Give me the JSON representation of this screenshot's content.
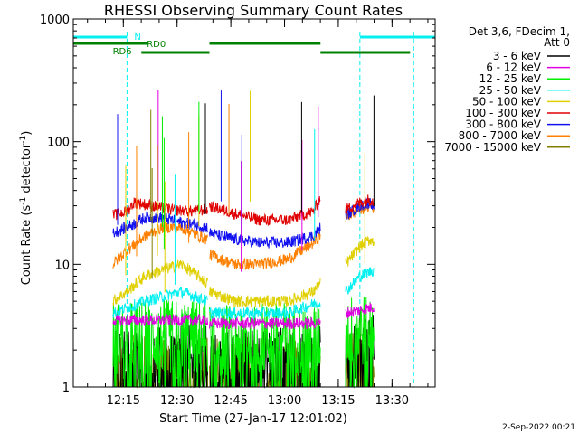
{
  "chart_data": {
    "type": "line",
    "title": "RHESSI Observing Summary Count Rates",
    "xlabel": "Start Time (27-Jan-17 12:01:02)",
    "ylabel": "Count Rate (s⁻¹ detector⁻¹)",
    "ylabel_parts": {
      "main": "Count Rate (s",
      "sup1": "-1",
      "mid": " detector",
      "sup2": "-1",
      "end": ")"
    },
    "yscale": "log",
    "ylim": [
      1,
      1000
    ],
    "xlim_minutes": [
      0,
      101
    ],
    "x_ticks": [
      "12:15",
      "12:30",
      "12:45",
      "13:00",
      "13:15",
      "13:30"
    ],
    "y_ticks": [
      "1",
      "10",
      "100",
      "1000"
    ],
    "footer_date": "2-Sep-2022 00:21",
    "legend_header": [
      "Det 3,6, FDecim 1,",
      "Att 0"
    ],
    "legend": [
      {
        "label": "3 - 6 keV",
        "color": "#000000"
      },
      {
        "label": "6 - 12 keV",
        "color": "#e000e0"
      },
      {
        "label": "12 - 25 keV",
        "color": "#00ee00"
      },
      {
        "label": "25 - 50 keV",
        "color": "#00f0f0"
      },
      {
        "label": "50 - 100 keV",
        "color": "#e0d000"
      },
      {
        "label": "100 - 300 keV",
        "color": "#e00000"
      },
      {
        "label": "300 - 800 keV",
        "color": "#1010f0"
      },
      {
        "label": "800 - 7000 keV",
        "color": "#ff8000"
      },
      {
        "label": "7000 - 15000 keV",
        "color": "#808000"
      }
    ],
    "flags": [
      {
        "label": "N",
        "color": "#00f0f0",
        "segments": [
          [
            0,
            15
          ],
          [
            80,
            101
          ]
        ]
      },
      {
        "label": "RD0",
        "color": "#008000",
        "segments": [
          [
            0,
            21
          ],
          [
            38,
            69
          ]
        ]
      },
      {
        "label": "RD6",
        "color": "#008000",
        "segments": [
          [
            19,
            38
          ],
          [
            69,
            94
          ]
        ]
      }
    ],
    "vlines_minutes": [
      15,
      80,
      95
    ],
    "segments_minutes": [
      [
        10.5,
        37.5
      ],
      [
        38,
        69
      ],
      [
        76,
        84
      ]
    ],
    "series": [
      {
        "color": "#e00000",
        "values": [
          [
            11,
            25
          ],
          [
            15,
            27
          ],
          [
            17,
            32
          ],
          [
            22,
            30
          ],
          [
            27,
            28
          ],
          [
            33,
            27
          ],
          [
            37.5,
            28
          ],
          [
            38,
            30
          ],
          [
            45,
            26
          ],
          [
            52,
            23
          ],
          [
            60,
            23
          ],
          [
            67,
            27
          ],
          [
            69,
            35
          ],
          [
            76,
            28
          ],
          [
            80,
            32
          ],
          [
            83,
            34
          ],
          [
            84,
            32
          ]
        ]
      },
      {
        "color": "#1010f0",
        "values": [
          [
            11,
            18
          ],
          [
            15,
            20
          ],
          [
            20,
            24
          ],
          [
            25,
            24
          ],
          [
            30,
            22
          ],
          [
            37.5,
            20
          ],
          [
            38,
            18
          ],
          [
            45,
            16
          ],
          [
            52,
            15
          ],
          [
            60,
            15
          ],
          [
            67,
            17
          ],
          [
            69,
            20
          ],
          [
            76,
            25
          ],
          [
            80,
            30
          ],
          [
            83,
            32
          ],
          [
            84,
            30
          ]
        ]
      },
      {
        "color": "#ff8000",
        "values": [
          [
            11,
            10
          ],
          [
            15,
            13
          ],
          [
            20,
            17
          ],
          [
            25,
            20
          ],
          [
            30,
            20
          ],
          [
            35,
            17
          ],
          [
            37.5,
            16
          ],
          [
            38,
            12
          ],
          [
            45,
            10
          ],
          [
            52,
            10
          ],
          [
            60,
            11
          ],
          [
            67,
            15
          ],
          [
            69,
            17
          ],
          [
            76,
            24
          ],
          [
            80,
            28
          ],
          [
            83,
            30
          ],
          [
            84,
            29
          ]
        ]
      },
      {
        "color": "#e0d000",
        "values": [
          [
            11,
            5
          ],
          [
            15,
            6
          ],
          [
            20,
            8
          ],
          [
            25,
            9
          ],
          [
            30,
            10
          ],
          [
            35,
            8
          ],
          [
            37.5,
            7
          ],
          [
            38,
            6
          ],
          [
            45,
            5
          ],
          [
            52,
            5
          ],
          [
            60,
            5
          ],
          [
            67,
            6
          ],
          [
            69,
            7
          ],
          [
            76,
            10
          ],
          [
            80,
            14
          ],
          [
            83,
            16
          ],
          [
            84,
            15
          ]
        ]
      },
      {
        "color": "#00f0f0",
        "values": [
          [
            11,
            4
          ],
          [
            20,
            5
          ],
          [
            30,
            6
          ],
          [
            37.5,
            5
          ],
          [
            38,
            4
          ],
          [
            60,
            4
          ],
          [
            69,
            5
          ],
          [
            76,
            6
          ],
          [
            80,
            8
          ],
          [
            84,
            9
          ]
        ]
      },
      {
        "color": "#e000e0",
        "values": [
          [
            11,
            3.5
          ],
          [
            37.5,
            3.5
          ],
          [
            38,
            3.3
          ],
          [
            69,
            3.3
          ],
          [
            76,
            4
          ],
          [
            84,
            4.5
          ]
        ]
      },
      {
        "color": "#00ee00",
        "values": [
          [
            11,
            2.5
          ],
          [
            37.5,
            2.6
          ],
          [
            38,
            2.4
          ],
          [
            69,
            2.5
          ],
          [
            76,
            2.8
          ],
          [
            84,
            3
          ]
        ]
      },
      {
        "color": "#000000",
        "values": [
          [
            11,
            1.5
          ],
          [
            37.5,
            1.6
          ],
          [
            38,
            1.5
          ],
          [
            69,
            1.6
          ],
          [
            76,
            2
          ],
          [
            84,
            2.2
          ]
        ]
      },
      {
        "color": "#808000",
        "values": [
          [
            11,
            1.3
          ],
          [
            37.5,
            1.4
          ],
          [
            38,
            1.3
          ],
          [
            69,
            1.3
          ],
          [
            76,
            1.5
          ],
          [
            84,
            1.6
          ]
        ]
      }
    ]
  }
}
